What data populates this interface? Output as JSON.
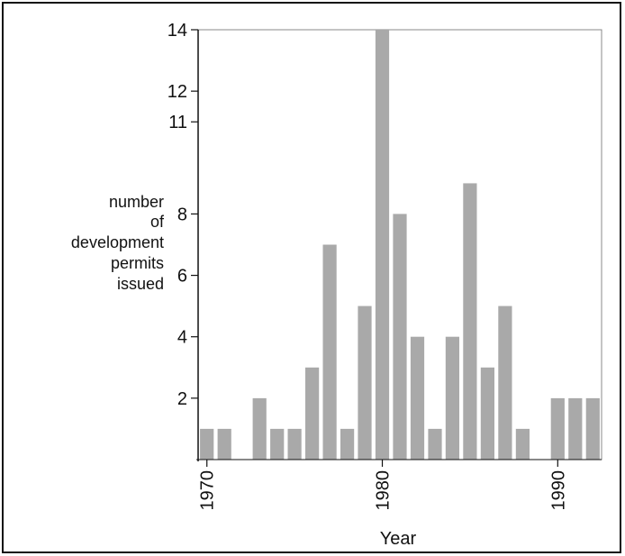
{
  "chart_data": {
    "type": "bar",
    "ylabel_lines": [
      "number",
      "of",
      "development",
      "permits",
      "issued"
    ],
    "xlabel": "Year",
    "y_ticks": [
      2,
      4,
      6,
      8,
      11,
      12,
      14
    ],
    "x_ticks": [
      "1970",
      "1980",
      "1990"
    ],
    "x_tick_years": [
      1970,
      1980,
      1990
    ],
    "ylim": [
      0,
      14
    ],
    "xlim": [
      1969.5,
      1992.5
    ],
    "bar_color": "#a9a9a9",
    "x": [
      1970,
      1971,
      1972,
      1973,
      1974,
      1975,
      1976,
      1977,
      1978,
      1979,
      1980,
      1981,
      1982,
      1983,
      1984,
      1985,
      1986,
      1987,
      1988,
      1989,
      1990,
      1991,
      1992
    ],
    "values": [
      1,
      1,
      0,
      2,
      1,
      1,
      3,
      7,
      1,
      5,
      14,
      8,
      4,
      1,
      4,
      9,
      3,
      5,
      1,
      0,
      2,
      2,
      2
    ],
    "grid": false
  }
}
